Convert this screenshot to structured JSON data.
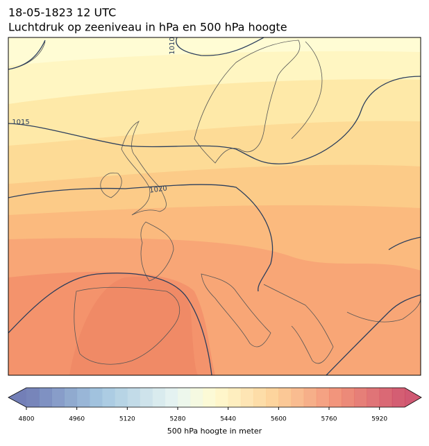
{
  "header": {
    "title": "18-05-1823 12 UTC",
    "subtitle": "Luchtdruk op zeeniveau in hPa en 500 hPa hoogte"
  },
  "map": {
    "isobar_labels": [
      1010,
      1015,
      1020
    ]
  },
  "colorbar": {
    "lim": [
      4800,
      6000
    ],
    "ticks": [
      4800,
      4960,
      5120,
      5280,
      5440,
      5600,
      5760,
      5920
    ],
    "label": "500 hPa hoogte in meter"
  }
}
